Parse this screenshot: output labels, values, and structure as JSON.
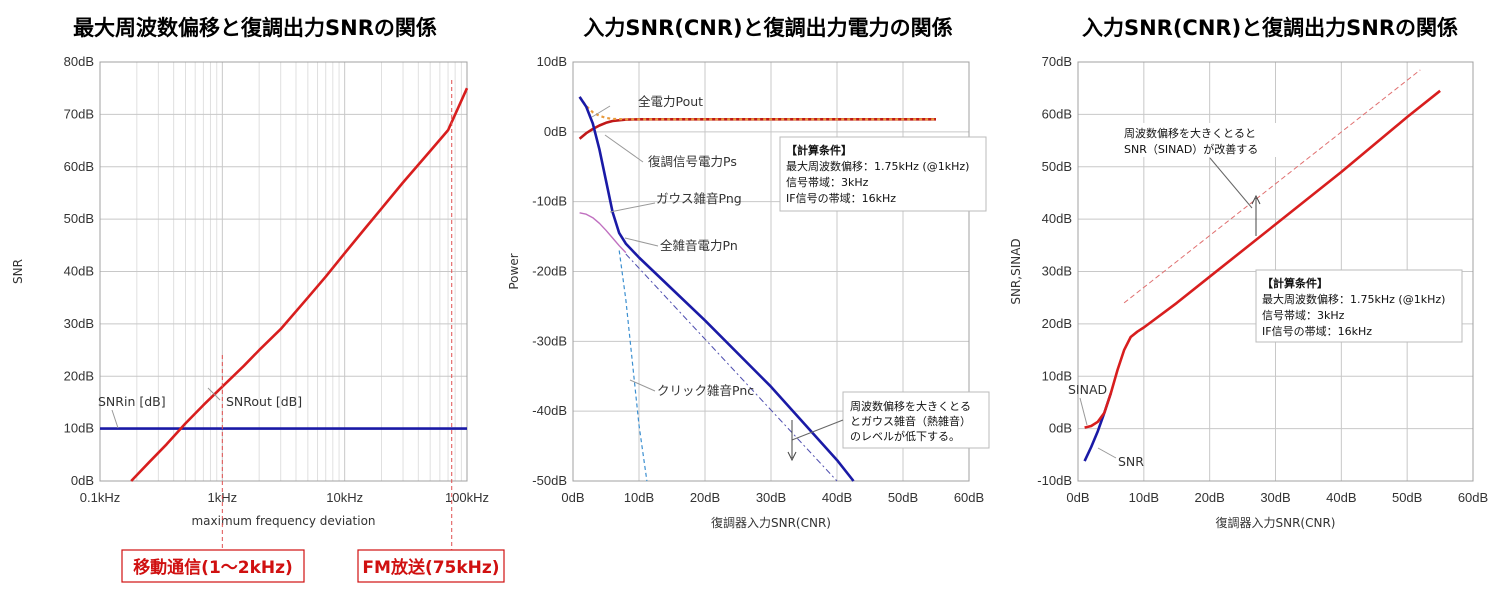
{
  "chart_data": [
    {
      "type": "line",
      "title": "最大周波数偏移と復調出力SNRの関係",
      "xlabel": "maximum frequency deviation",
      "ylabel": "SNR",
      "xscale": "log",
      "xlim": [
        0.1,
        100
      ],
      "ylim": [
        0,
        80
      ],
      "x_ticks": [
        "0.1kHz",
        "1kHz",
        "10kHz",
        "100kHz"
      ],
      "y_ticks": [
        "0dB",
        "10dB",
        "20dB",
        "30dB",
        "40dB",
        "50dB",
        "60dB",
        "70dB",
        "80dB"
      ],
      "grid": true,
      "series": [
        {
          "name": "SNRin [dB]",
          "color": "#1a1aa6",
          "x": [
            0.1,
            100
          ],
          "y": [
            10,
            10
          ]
        },
        {
          "name": "SNRout [dB]",
          "color": "#d81e1e",
          "x": [
            0.18,
            0.25,
            0.35,
            0.5,
            0.7,
            1,
            1.5,
            2,
            3,
            5,
            7,
            10,
            15,
            20,
            30,
            50,
            70,
            100
          ],
          "y": [
            0,
            3.5,
            7,
            11,
            14.5,
            18,
            22,
            25,
            29,
            35,
            39,
            43.5,
            48.5,
            52,
            57,
            63,
            67,
            75
          ]
        }
      ],
      "annotations": [
        {
          "text": "SNRin [dB]"
        },
        {
          "text": "SNRout [dB]"
        },
        {
          "text": "移動通信(1～2kHz)",
          "x": 1
        },
        {
          "text": "FM放送(75kHz)",
          "x": 75
        }
      ]
    },
    {
      "type": "line",
      "title": "入力SNR(CNR)と復調出力電力の関係",
      "xlabel": "復調器入力SNR(CNR)",
      "ylabel": "Power",
      "xlim": [
        0,
        60
      ],
      "ylim": [
        -50,
        10
      ],
      "x_ticks": [
        "0dB",
        "10dB",
        "20dB",
        "30dB",
        "40dB",
        "50dB",
        "60dB"
      ],
      "y_ticks": [
        "-50dB",
        "-40dB",
        "-30dB",
        "-20dB",
        "-10dB",
        "0dB",
        "10dB"
      ],
      "grid": true,
      "series": [
        {
          "name": "全電力Pout",
          "color": "#c01818",
          "x": [
            1,
            2,
            3,
            4,
            5,
            6,
            8,
            10,
            15,
            20,
            30,
            40,
            55
          ],
          "y": [
            -1,
            -0.2,
            0.4,
            0.9,
            1.3,
            1.55,
            1.75,
            1.8,
            1.8,
            1.8,
            1.8,
            1.8,
            1.8
          ]
        },
        {
          "name": "復調信号電力Ps",
          "color": "#e89a3c",
          "x": [
            1,
            2,
            3,
            4,
            5,
            6,
            8,
            10,
            15,
            20,
            30,
            40,
            55
          ],
          "y": [
            5,
            3.7,
            2.8,
            2.3,
            2.0,
            1.85,
            1.8,
            1.8,
            1.8,
            1.8,
            1.8,
            1.8,
            1.8
          ]
        },
        {
          "name": "ガウス雑音Png",
          "color": "#c070c0",
          "x": [
            1,
            2,
            3,
            4,
            5,
            6,
            7,
            8
          ],
          "y": [
            -11.6,
            -11.8,
            -12.3,
            -13.1,
            -14.1,
            -15.2,
            -16.3,
            -17.3
          ]
        },
        {
          "name": "全雑音電力Pn",
          "color": "#1a1aa6",
          "x": [
            1,
            2,
            3,
            4,
            5,
            6,
            7,
            8,
            10,
            15,
            20,
            30,
            40,
            42.5
          ],
          "y": [
            5,
            3.6,
            1.2,
            -2.5,
            -7,
            -11.5,
            -14.5,
            -16,
            -18,
            -22.5,
            -27,
            -36.5,
            -47,
            -50
          ]
        },
        {
          "name": "クリック雑音Pnc",
          "color": "#3b8fd0",
          "x": [
            7,
            8,
            9,
            10,
            11.2
          ],
          "y": [
            -17,
            -24,
            -33,
            -42,
            -50
          ]
        },
        {
          "name": "",
          "color": "#5050b0",
          "x": [
            8,
            40
          ],
          "y": [
            -17.5,
            -50
          ]
        }
      ],
      "annotations": [
        {
          "text": "全電力Pout"
        },
        {
          "text": "復調信号電力Ps"
        },
        {
          "text": "ガウス雑音Png"
        },
        {
          "text": "全雑音電力Pn"
        },
        {
          "text": "クリック雑音Pnc"
        },
        {
          "text": "周波数偏移を大きくとる"
        },
        {
          "text": "とガウス雑音（熱雑音）"
        },
        {
          "text": "のレベルが低下する。"
        }
      ],
      "conditions": [
        "【計算条件】",
        "最大周波数偏移：1.75kHz (@1kHz)",
        "信号帯域：3kHz",
        "IF信号の帯域：16kHz"
      ]
    },
    {
      "type": "line",
      "title": "入力SNR(CNR)と復調出力SNRの関係",
      "xlabel": "復調器入力SNR(CNR)",
      "ylabel": "SNR,SINAD",
      "xlim": [
        0,
        60
      ],
      "ylim": [
        -10,
        70
      ],
      "x_ticks": [
        "0dB",
        "10dB",
        "20dB",
        "30dB",
        "40dB",
        "50dB",
        "60dB"
      ],
      "y_ticks": [
        "-10dB",
        "0dB",
        "10dB",
        "20dB",
        "30dB",
        "40dB",
        "50dB",
        "60dB",
        "70dB"
      ],
      "grid": true,
      "series": [
        {
          "name": "SNR",
          "color": "#1a1aa6",
          "x": [
            1,
            2,
            3,
            4,
            5
          ],
          "y": [
            -6.2,
            -3.5,
            -0.5,
            3,
            6.8
          ]
        },
        {
          "name": "SINAD",
          "color": "#d81e1e",
          "x": [
            1,
            2,
            3,
            4,
            5,
            6,
            7,
            8,
            9,
            10,
            15,
            20,
            30,
            40,
            50,
            55
          ],
          "y": [
            0.2,
            0.5,
            1.3,
            3,
            6.8,
            11.2,
            15,
            17.5,
            18.5,
            19.3,
            24,
            29,
            39,
            49,
            59.5,
            64.5
          ]
        },
        {
          "name": "",
          "color": "#e07070",
          "x": [
            7,
            52
          ],
          "y": [
            24,
            68.5
          ]
        }
      ],
      "annotations": [
        {
          "text": "SINAD"
        },
        {
          "text": "SNR"
        },
        {
          "text": "周波数偏移を大きくとると"
        },
        {
          "text": "SNR（SINAD）が改善する"
        }
      ],
      "conditions": [
        "【計算条件】",
        "最大周波数偏移：1.75kHz (@1kHz)",
        "信号帯域：3kHz",
        "IF信号の帯域：16kHz"
      ]
    }
  ]
}
